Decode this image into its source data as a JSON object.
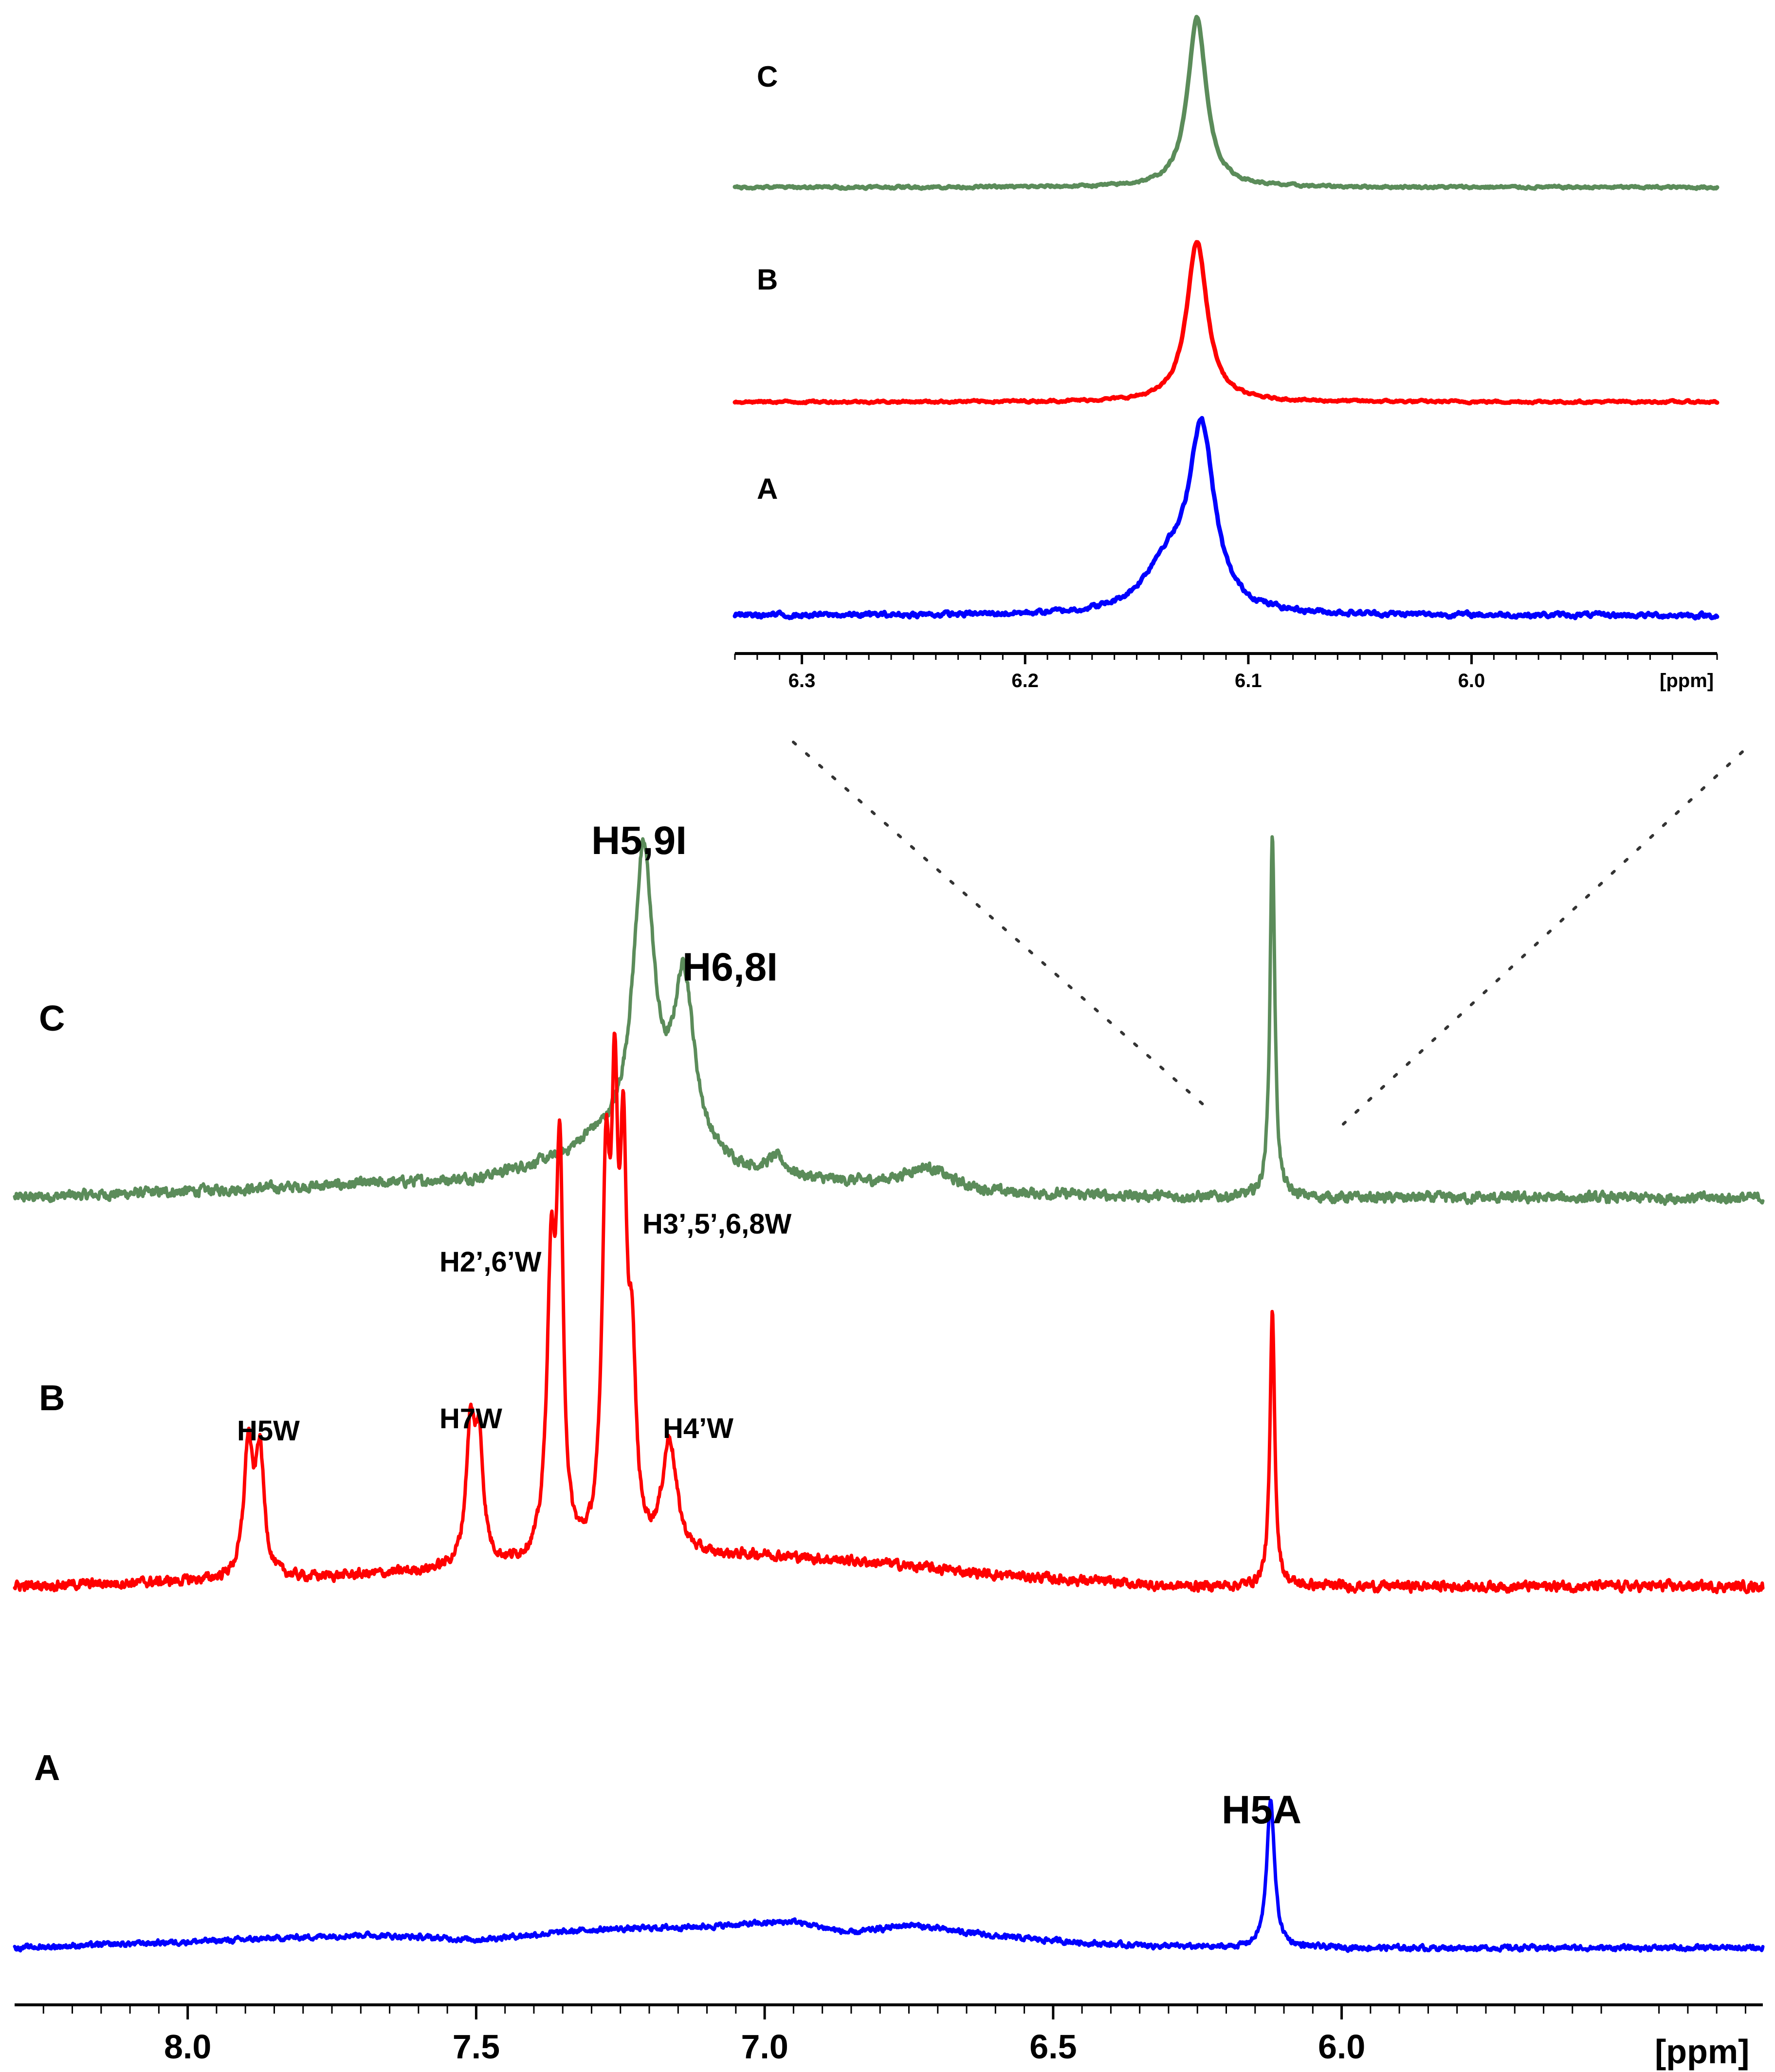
{
  "chart_data": [
    {
      "type": "line",
      "title": "",
      "description_role": "main 1H NMR spectra",
      "xlabel": "[ppm]",
      "xlim": [
        8.3,
        5.27
      ],
      "x_reversed": true,
      "x_ticks": [
        "8.0",
        "7.5",
        "7.0",
        "6.5",
        "6.0"
      ],
      "x_tick_values": [
        8.0,
        7.5,
        7.0,
        6.5,
        6.0
      ],
      "series": [
        {
          "name": "C",
          "label": "C",
          "color": "#5b8c5a",
          "noise": 0.022,
          "baseline": [
            [
              8.3,
              0.0
            ],
            [
              7.8,
              0.03
            ],
            [
              7.5,
              0.05
            ],
            [
              7.35,
              0.1
            ],
            [
              7.3,
              0.14
            ],
            [
              7.0,
              0.05
            ],
            [
              6.8,
              0.03
            ],
            [
              6.6,
              0.01
            ],
            [
              6.2,
              0.0
            ],
            [
              5.27,
              0.0
            ]
          ],
          "peaks": [
            {
              "ppm": 7.21,
              "height": 0.82,
              "width": 0.022
            },
            {
              "ppm": 7.14,
              "height": 0.48,
              "width": 0.022
            },
            {
              "ppm": 6.98,
              "height": 0.05,
              "width": 0.02
            },
            {
              "ppm": 6.72,
              "height": 0.06,
              "width": 0.05
            },
            {
              "ppm": 6.12,
              "height": 1.0,
              "width": 0.005
            }
          ]
        },
        {
          "name": "B",
          "label": "B",
          "color": "#ff0000",
          "noise": 0.02,
          "baseline": [
            [
              8.3,
              0.0
            ],
            [
              7.8,
              0.02
            ],
            [
              7.0,
              0.08
            ],
            [
              6.8,
              0.06
            ],
            [
              6.6,
              0.03
            ],
            [
              6.3,
              0.0
            ],
            [
              5.27,
              0.0
            ]
          ],
          "peaks": [
            {
              "ppm": 7.895,
              "height": 0.34,
              "width": 0.009
            },
            {
              "ppm": 7.875,
              "height": 0.32,
              "width": 0.009
            },
            {
              "ppm": 7.51,
              "height": 0.34,
              "width": 0.009
            },
            {
              "ppm": 7.495,
              "height": 0.3,
              "width": 0.009
            },
            {
              "ppm": 7.37,
              "height": 0.72,
              "width": 0.009
            },
            {
              "ppm": 7.355,
              "height": 0.96,
              "width": 0.007
            },
            {
              "ppm": 7.275,
              "height": 0.92,
              "width": 0.008
            },
            {
              "ppm": 7.26,
              "height": 1.0,
              "width": 0.007
            },
            {
              "ppm": 7.245,
              "height": 0.88,
              "width": 0.007
            },
            {
              "ppm": 7.23,
              "height": 0.45,
              "width": 0.008
            },
            {
              "ppm": 7.165,
              "height": 0.3,
              "width": 0.015
            },
            {
              "ppm": 6.12,
              "height": 0.72,
              "width": 0.005
            }
          ]
        },
        {
          "name": "A",
          "label": "A",
          "color": "#0000ff",
          "noise": 0.025,
          "baseline": [
            [
              8.3,
              0.0
            ],
            [
              7.9,
              0.05
            ],
            [
              7.7,
              0.08
            ],
            [
              7.5,
              0.05
            ],
            [
              7.3,
              0.11
            ],
            [
              7.1,
              0.13
            ],
            [
              6.95,
              0.16
            ],
            [
              6.85,
              0.09
            ],
            [
              6.75,
              0.14
            ],
            [
              6.6,
              0.07
            ],
            [
              6.4,
              0.02
            ],
            [
              6.2,
              0.0
            ],
            [
              5.27,
              0.0
            ]
          ],
          "peaks": [
            {
              "ppm": 6.123,
              "height": 0.9,
              "width": 0.008
            }
          ]
        }
      ]
    },
    {
      "type": "line",
      "title": "",
      "description_role": "inset expansion of the 6.1 ppm signal",
      "xlabel": "[ppm]",
      "xlim": [
        6.33,
        5.89
      ],
      "x_reversed": true,
      "x_ticks": [
        "6.3",
        "6.2",
        "6.1",
        "6.0"
      ],
      "x_tick_values": [
        6.3,
        6.2,
        6.1,
        6.0
      ],
      "series": [
        {
          "name": "C",
          "label": "C",
          "color": "#5b8c5a",
          "noise": 0.012,
          "tilt": 0.0,
          "peaks": [
            {
              "ppm": 6.123,
              "height": 1.0,
              "width": 0.005
            }
          ]
        },
        {
          "name": "B",
          "label": "B",
          "color": "#ff0000",
          "noise": 0.012,
          "tilt": 0.0,
          "peaks": [
            {
              "ppm": 6.123,
              "height": 1.0,
              "width": 0.0055
            }
          ]
        },
        {
          "name": "A",
          "label": "A",
          "color": "#0000ff",
          "noise": 0.02,
          "tilt": 0.0,
          "peaks": [
            {
              "ppm": 6.121,
              "height": 0.88,
              "width": 0.007
            },
            {
              "ppm": 6.137,
              "height": 0.22,
              "width": 0.012
            }
          ]
        }
      ]
    }
  ],
  "annotations": [
    {
      "id": "h59i",
      "text": "H5,9I",
      "ppm": 7.21,
      "trace": "C"
    },
    {
      "id": "h68i",
      "text": "H6,8I",
      "ppm": 7.14,
      "trace": "C"
    },
    {
      "id": "h5w",
      "text": "H5W",
      "ppm": 7.885,
      "trace": "B"
    },
    {
      "id": "h7w",
      "text": "H7W",
      "ppm": 7.505,
      "trace": "B"
    },
    {
      "id": "h26w",
      "text": "H2’,6’W",
      "ppm": 7.36,
      "trace": "B"
    },
    {
      "id": "h35w",
      "text": "H3’,5’,6,8W",
      "ppm": 7.26,
      "trace": "B"
    },
    {
      "id": "h4w",
      "text": "H4’W",
      "ppm": 7.165,
      "trace": "B"
    },
    {
      "id": "h5a",
      "text": "H5A",
      "ppm": 6.123,
      "trace": "A"
    }
  ]
}
